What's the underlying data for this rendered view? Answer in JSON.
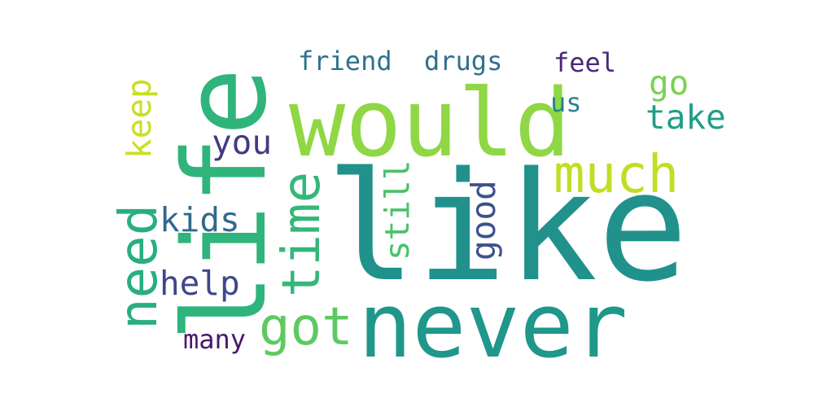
{
  "words": [
    {
      "text": "like",
      "color": "#21918c"
    },
    {
      "text": "would",
      "color": "#8fd744"
    },
    {
      "text": "never",
      "color": "#1f978b"
    },
    {
      "text": "life",
      "color": "#2fb47c"
    },
    {
      "text": "much",
      "color": "#bddf26"
    },
    {
      "text": "time",
      "color": "#35b779"
    },
    {
      "text": "need",
      "color": "#28ae80"
    },
    {
      "text": "got",
      "color": "#5ec962"
    },
    {
      "text": "help",
      "color": "#3f4788"
    },
    {
      "text": "kids",
      "color": "#31688e"
    },
    {
      "text": "keep",
      "color": "#c8e020"
    },
    {
      "text": "you",
      "color": "#443983"
    },
    {
      "text": "friend",
      "color": "#2c728e"
    },
    {
      "text": "drugs",
      "color": "#2e6f8e"
    },
    {
      "text": "feel",
      "color": "#482878"
    },
    {
      "text": "go",
      "color": "#7ad151"
    },
    {
      "text": "take",
      "color": "#1f9e89"
    },
    {
      "text": "us",
      "color": "#25848e"
    },
    {
      "text": "still",
      "color": "#4ac16d"
    },
    {
      "text": "good",
      "color": "#3b528b"
    },
    {
      "text": "many",
      "color": "#48186a"
    }
  ]
}
